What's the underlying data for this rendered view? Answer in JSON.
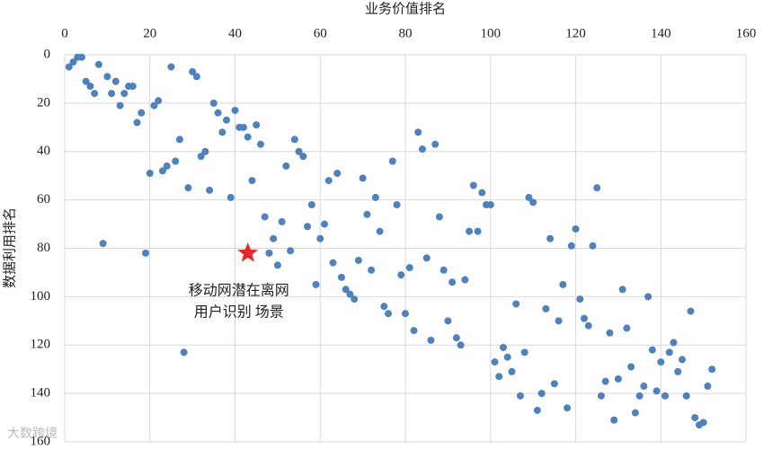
{
  "chart_data": {
    "type": "scatter",
    "title": "业务价值排名",
    "y_label": "数据利用排名",
    "xlim": [
      0,
      160
    ],
    "xticks": [
      0,
      20,
      40,
      60,
      80,
      100,
      120,
      140,
      160
    ],
    "ylim": [
      0,
      160
    ],
    "yticks": [
      0,
      20,
      40,
      60,
      80,
      100,
      120,
      140,
      160
    ],
    "y_reversed": true,
    "x_axis_top": true,
    "grid": true,
    "series": [
      {
        "color": "#4f81bd",
        "x": [
          1,
          2,
          3,
          4,
          5,
          6,
          7,
          8,
          9,
          10,
          11,
          12,
          13,
          14,
          15,
          16,
          17,
          18,
          19,
          20,
          21,
          22,
          23,
          24,
          25,
          26,
          27,
          28,
          29,
          30,
          31,
          32,
          33,
          34,
          35,
          36,
          37,
          38,
          39,
          40,
          41,
          42,
          43,
          44,
          45,
          46,
          47,
          48,
          49,
          50,
          51,
          52,
          53,
          54,
          55,
          56,
          57,
          58,
          59,
          60,
          61,
          62,
          63,
          64,
          65,
          66,
          67,
          68,
          69,
          70,
          71,
          72,
          73,
          74,
          75,
          76,
          77,
          78,
          79,
          80,
          81,
          82,
          83,
          84,
          85,
          86,
          87,
          88,
          89,
          90,
          91,
          92,
          93,
          94,
          95,
          96,
          97,
          98,
          99,
          100,
          101,
          102,
          103,
          104,
          105,
          106,
          107,
          108,
          109,
          110,
          111,
          112,
          113,
          114,
          115,
          116,
          117,
          118,
          119,
          120,
          121,
          122,
          123,
          124,
          125,
          126,
          127,
          128,
          129,
          130,
          131,
          132,
          133,
          134,
          135,
          136,
          137,
          138,
          139,
          140,
          141,
          142,
          143,
          144,
          145,
          146,
          147,
          148,
          149,
          150,
          151,
          152
        ],
        "values": [
          5,
          3,
          1,
          1,
          11,
          13,
          16,
          4,
          78,
          9,
          16,
          11,
          21,
          16,
          13,
          13,
          28,
          24,
          82,
          49,
          21,
          19,
          48,
          46,
          5,
          44,
          35,
          123,
          55,
          7,
          9,
          42,
          40,
          56,
          20,
          24,
          32,
          27,
          59,
          23,
          30,
          30,
          34,
          52,
          29,
          37,
          67,
          82,
          76,
          87,
          69,
          46,
          81,
          35,
          40,
          42,
          71,
          62,
          95,
          76,
          70,
          52,
          86,
          49,
          92,
          97,
          99,
          101,
          85,
          51,
          66,
          89,
          59,
          73,
          104,
          107,
          44,
          62,
          91,
          107,
          88,
          114,
          32,
          39,
          84,
          118,
          37,
          67,
          89,
          110,
          94,
          117,
          120,
          93,
          73,
          54,
          73,
          57,
          62,
          62,
          127,
          133,
          121,
          125,
          131,
          103,
          141,
          123,
          59,
          61,
          147,
          140,
          105,
          76,
          136,
          110,
          95,
          146,
          79,
          72,
          101,
          109,
          112,
          79,
          55,
          141,
          135,
          115,
          151,
          134,
          97,
          113,
          129,
          148,
          141,
          137,
          100,
          122,
          139,
          127,
          141,
          123,
          119,
          131,
          126,
          141,
          106,
          150,
          153,
          152,
          137,
          130
        ]
      }
    ],
    "highlight": {
      "x": 43,
      "y": 82,
      "color": "#e8262a",
      "label": [
        "移动网潜在离网",
        "用户识别 场景"
      ]
    },
    "watermark": "大数跨境"
  }
}
